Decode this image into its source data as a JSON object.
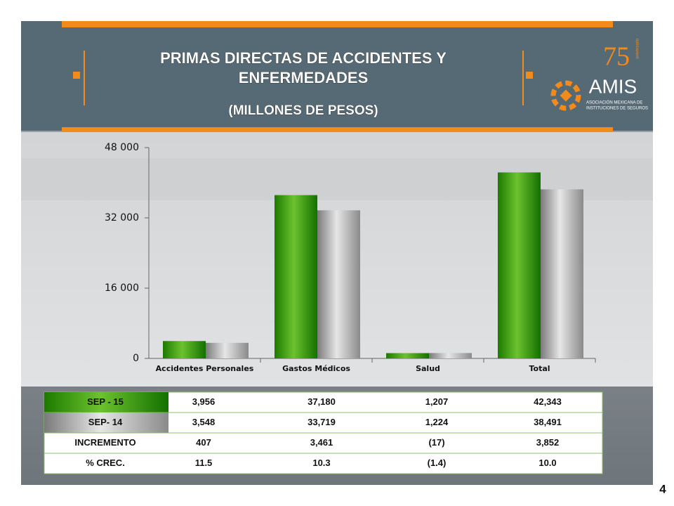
{
  "chart_data": {
    "type": "bar",
    "title": "PRIMAS DIRECTAS DE ACCIDENTES Y ENFERMEDADES",
    "subtitle": "(MILLONES DE PESOS)",
    "categories": [
      "Accidentes Personales",
      "Gastos Médicos",
      "Salud",
      "Total"
    ],
    "series": [
      {
        "name": "SEP - 15",
        "color": "#2f8f0a",
        "values": [
          3956,
          37180,
          1207,
          42343
        ],
        "value_labels": [
          "3,956",
          "37,180",
          "1,207",
          "42,343"
        ]
      },
      {
        "name": "SEP- 14",
        "color": "#a8a8a8",
        "values": [
          3548,
          33719,
          1224,
          38491
        ],
        "value_labels": [
          "3,548",
          "33,719",
          "1,224",
          "38,491"
        ]
      }
    ],
    "ylim": [
      0,
      48000
    ],
    "yticks": [
      0,
      {
        "value": 16000,
        "label": "16 000"
      },
      {
        "value": 32000,
        "label": "32 000"
      },
      {
        "value": 48000,
        "label": "48 000"
      }
    ],
    "grid": false
  },
  "table": {
    "rows": [
      {
        "label": "INCREMENTO",
        "cells": [
          "407",
          "3,461",
          "(17)",
          "3,852"
        ]
      },
      {
        "label": "% CREC.",
        "cells": [
          "11.5",
          "10.3",
          "(1.4)",
          "10.0"
        ]
      }
    ]
  },
  "logo": {
    "number": "75",
    "word": "aniversario",
    "name": "AMIS",
    "line1": "ASOCIACIÓN MEXICANA DE",
    "line2": "INSTITUCIONES DE SEGUROS"
  },
  "page_number": "4"
}
